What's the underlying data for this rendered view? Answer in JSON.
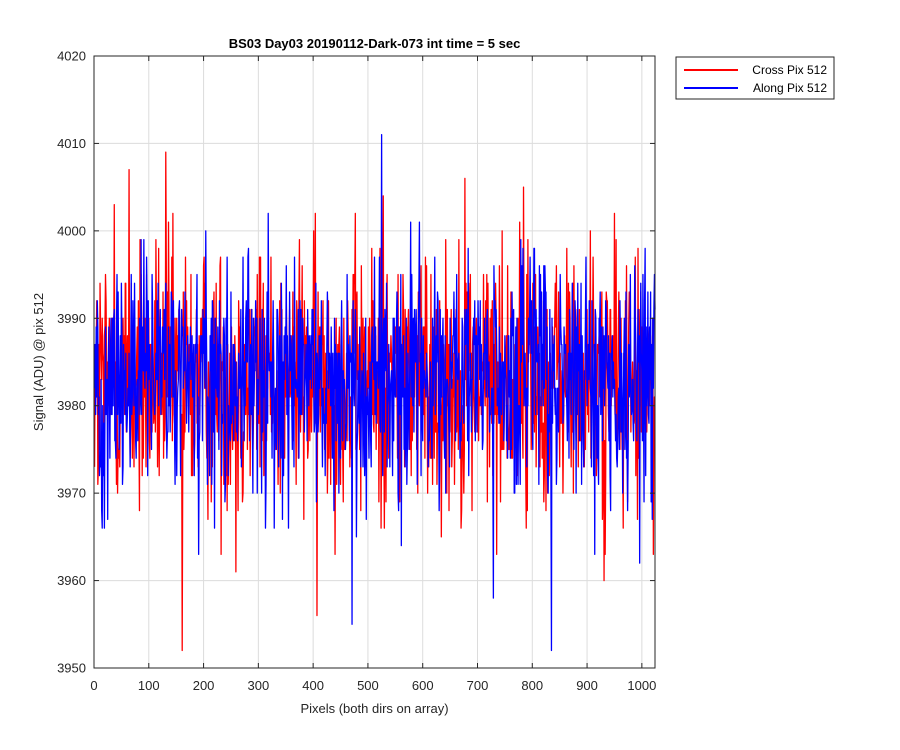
{
  "chart_data": {
    "type": "line",
    "title": "BS03 Day03 20190112-Dark-073 int time = 5 sec",
    "xlabel": "Pixels (both dirs on array)",
    "ylabel": "Signal (ADU) @ pix 512",
    "xlim": [
      0,
      1024
    ],
    "ylim": [
      3950,
      4020
    ],
    "xticks": [
      0,
      100,
      200,
      300,
      400,
      500,
      600,
      700,
      800,
      900,
      1000
    ],
    "yticks": [
      3950,
      3960,
      3970,
      3980,
      3990,
      4000,
      4010,
      4020
    ],
    "grid": true,
    "legend": "outside-top-right",
    "num_points": 1024,
    "series": [
      {
        "name": "Cross Pix 512",
        "color": "#ff0000",
        "approx_mean": 3983,
        "approx_std": 7.5,
        "extremes": [
          {
            "x": 6,
            "y": 3971
          },
          {
            "x": 36,
            "y": 4003
          },
          {
            "x": 63,
            "y": 4007
          },
          {
            "x": 82,
            "y": 3968
          },
          {
            "x": 130,
            "y": 4009
          },
          {
            "x": 160,
            "y": 3952
          },
          {
            "x": 258,
            "y": 3961
          },
          {
            "x": 406,
            "y": 3956
          },
          {
            "x": 527,
            "y": 4004
          },
          {
            "x": 676,
            "y": 4006
          },
          {
            "x": 783,
            "y": 4005
          },
          {
            "x": 930,
            "y": 3960
          },
          {
            "x": 1020,
            "y": 3963
          }
        ]
      },
      {
        "name": "Along Pix 512",
        "color": "#0000ff",
        "approx_mean": 3983,
        "approx_std": 7,
        "extremes": [
          {
            "x": 14,
            "y": 3966
          },
          {
            "x": 190,
            "y": 3963
          },
          {
            "x": 470,
            "y": 3955
          },
          {
            "x": 524,
            "y": 4011
          },
          {
            "x": 728,
            "y": 3958
          },
          {
            "x": 834,
            "y": 3952
          },
          {
            "x": 995,
            "y": 3962
          }
        ]
      }
    ]
  }
}
